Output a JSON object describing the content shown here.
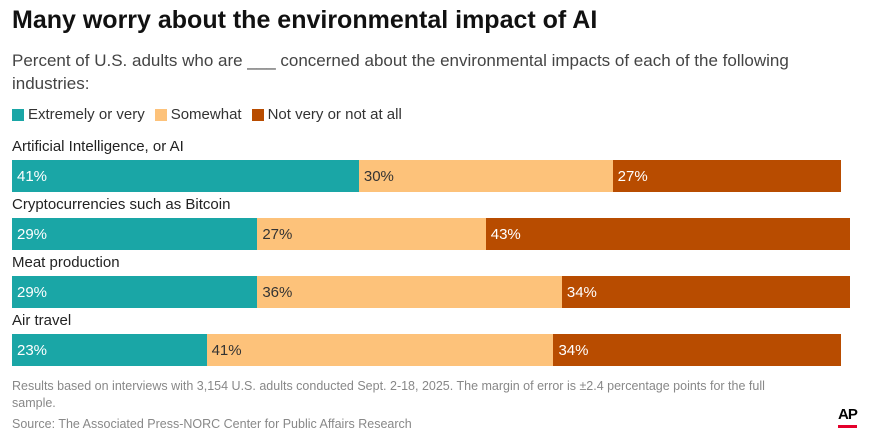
{
  "chart_data": {
    "type": "bar",
    "stacked": true,
    "orientation": "horizontal",
    "title": "Many worry about the environmental impact of AI",
    "subtitle": "Percent of U.S. adults who are ___ concerned about the environmental impacts of each of the following industries:",
    "categories": [
      "Artificial Intelligence, or AI",
      "Cryptocurrencies such as Bitcoin",
      "Meat production",
      "Air travel"
    ],
    "series": [
      {
        "name": "Extremely or very",
        "color": "#1aa6a6",
        "text_color": "#ffffff",
        "values": [
          41,
          29,
          29,
          23
        ]
      },
      {
        "name": "Somewhat",
        "color": "#fdc27a",
        "text_color": "#333333",
        "values": [
          30,
          27,
          36,
          41
        ]
      },
      {
        "name": "Not very or not at all",
        "color": "#b84c00",
        "text_color": "#ffffff",
        "values": [
          27,
          43,
          34,
          34
        ]
      }
    ],
    "xlim": [
      0,
      100
    ],
    "legend": "top-left"
  },
  "footer": {
    "note": "Results based on interviews with 3,154 U.S. adults conducted Sept. 2-18, 2025. The margin of error is ±2.4 percentage points for the full sample.",
    "source": "Source: The Associated Press-NORC Center for Public Affairs Research",
    "logo": "AP"
  }
}
